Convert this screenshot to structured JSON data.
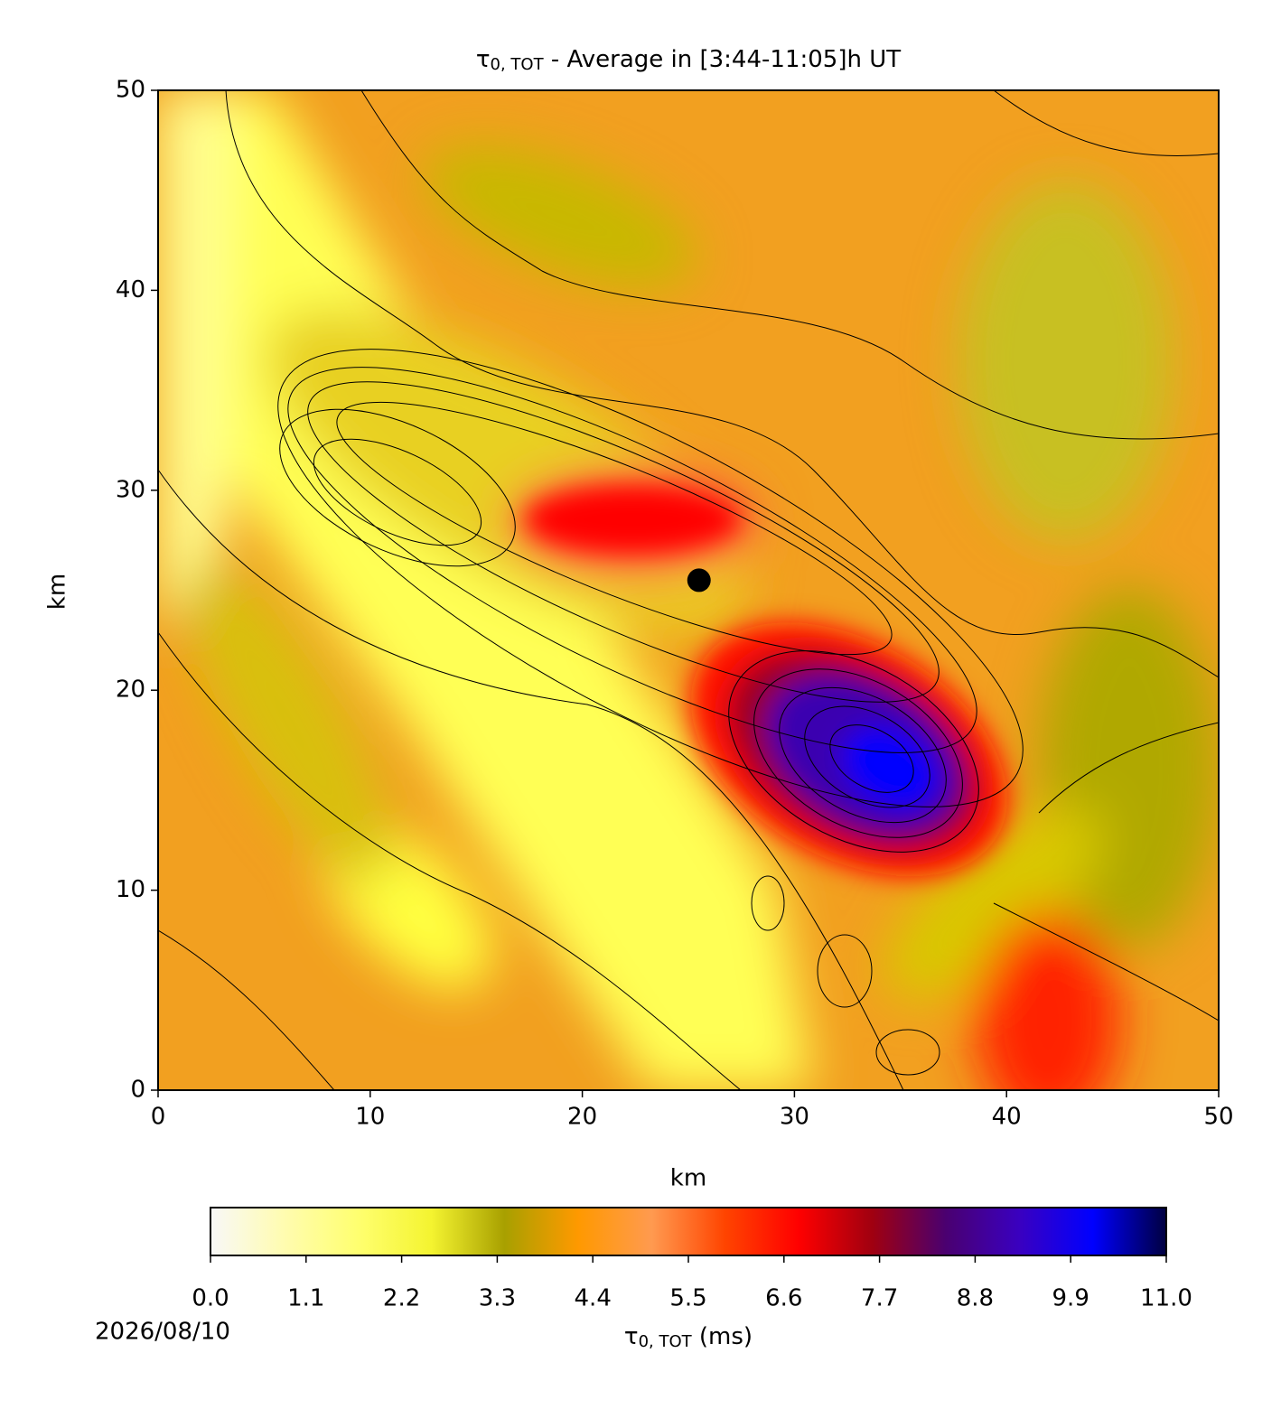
{
  "chart_data": {
    "type": "contour",
    "title": {
      "symbol": "τ",
      "subscript": "0, TOT",
      "text": " - Average in [3:44-11:05]h UT"
    },
    "xlabel": "km",
    "ylabel": "km",
    "xlim": [
      0,
      50
    ],
    "xticks": [
      0,
      10,
      20,
      30,
      40,
      50
    ],
    "ylim": [
      0,
      50
    ],
    "yticks": [
      0,
      10,
      20,
      30,
      40,
      50
    ],
    "marker": {
      "x": 25.5,
      "y": 25.5,
      "color": "#000000"
    },
    "colorbar": {
      "label": {
        "symbol": "τ",
        "subscript": "0, TOT",
        "text": " (ms)"
      },
      "clim": [
        0,
        11.0
      ],
      "ticks": [
        {
          "value": 0,
          "label": "0.0"
        },
        1.1,
        2.2,
        3.3,
        4.4,
        5.5,
        6.6,
        7.7,
        8.8,
        9.9,
        {
          "value": 11.0,
          "label": "11.0"
        }
      ],
      "colormap": [
        "#f8f8f8",
        "#fffcb0",
        "#ffff70",
        "#f4f430",
        "#a8a000",
        "#ff9900",
        "#ff9a50",
        "#ff4400",
        "#ff0000",
        "#a00010",
        "#4a0070",
        "#3a00c0",
        "#0000ff",
        "#000040"
      ]
    },
    "date": "2026/08/10"
  }
}
